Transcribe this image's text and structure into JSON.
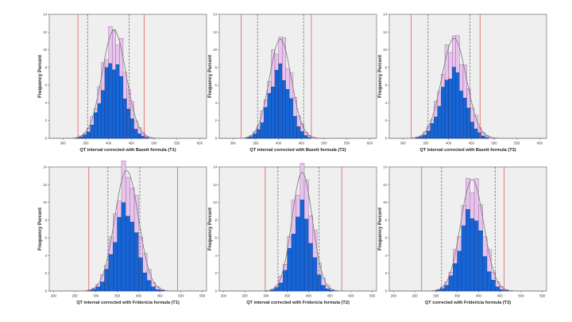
{
  "colors": {
    "plot_bg": "#efefef",
    "frame": "#555555",
    "bar_pink": "#e8c4ec",
    "bar_pink_edge": "#7b4f86",
    "bar_blue": "#1565d6",
    "bar_blue_edge": "#0a2f75",
    "curve": "#777777",
    "red_line": "#e06060",
    "dash_line": "#555555"
  },
  "chart_data": [
    {
      "type": "bar",
      "title": "",
      "xlabel": "QT interval corrected with Bazett formula (T1)",
      "ylabel": "Frequency Percent",
      "xlim": [
        270,
        615
      ],
      "ylim": [
        0,
        14
      ],
      "xticks": [
        300,
        350,
        400,
        450,
        500,
        550,
        600
      ],
      "yticks": [
        0,
        2,
        4,
        6,
        8,
        10,
        12,
        14
      ],
      "bin_width": 8,
      "mean": 412,
      "sd": 26,
      "pink_peak": 12.2,
      "blue_peak": 8.6,
      "red_lines": [
        333,
        478
      ],
      "dashed_lines": [
        354,
        445
      ],
      "legend": "none",
      "grid": false
    },
    {
      "type": "bar",
      "title": "",
      "xlabel": "QT interval corrected with Bazett formula (T2)",
      "ylabel": "Frequency Percent",
      "xlim": [
        270,
        615
      ],
      "ylim": [
        0,
        14
      ],
      "xticks": [
        300,
        350,
        400,
        450,
        500,
        550,
        600
      ],
      "yticks": [
        0,
        2,
        4,
        6,
        8,
        10,
        12,
        14
      ],
      "bin_width": 8,
      "mean": 404,
      "sd": 24,
      "pink_peak": 11.2,
      "blue_peak": 7.8,
      "red_lines": [
        318,
        472
      ],
      "dashed_lines": [
        354,
        455
      ],
      "legend": "none",
      "grid": false
    },
    {
      "type": "bar",
      "title": "",
      "xlabel": "QT interval corrected with Bazett formula (T3)",
      "ylabel": "Frequency Percent",
      "xlim": [
        270,
        615
      ],
      "ylim": [
        0,
        14
      ],
      "xticks": [
        300,
        350,
        400,
        450,
        500,
        550,
        600
      ],
      "yticks": [
        0,
        2,
        4,
        6,
        8,
        10,
        12,
        14
      ],
      "bin_width": 8,
      "mean": 412,
      "sd": 27,
      "pink_peak": 11.3,
      "blue_peak": 7.6,
      "red_lines": [
        318,
        469
      ],
      "dashed_lines": [
        355,
        447
      ],
      "legend": "none",
      "grid": false
    },
    {
      "type": "bar",
      "title": "",
      "xlabel": "QT interval corrected with Fridericia formula (T1)",
      "ylabel": "Frequency Percent",
      "xlim": [
        190,
        560
      ],
      "ylim": [
        0,
        14
      ],
      "xticks": [
        200,
        250,
        300,
        350,
        400,
        450,
        500,
        550
      ],
      "yticks": [
        0,
        2,
        4,
        6,
        8,
        10,
        12,
        14
      ],
      "bin_width": 10,
      "mean": 372,
      "sd": 28,
      "pink_peak": 13.6,
      "blue_peak": 9.4,
      "red_lines": [
        283,
        492
      ],
      "dashed_lines": [
        328,
        403
      ],
      "legend": "none",
      "grid": false
    },
    {
      "type": "bar",
      "title": "",
      "xlabel": "QT interval corrected with Fridericia formula (T2)",
      "ylabel": "Frequency Percent",
      "xlim": [
        190,
        560
      ],
      "ylim": [
        0,
        14
      ],
      "xticks": [
        200,
        250,
        300,
        350,
        400,
        450,
        500,
        550
      ],
      "yticks": [
        0,
        2,
        4,
        6,
        8,
        10,
        12,
        14
      ],
      "bin_width": 10,
      "mean": 385,
      "sd": 24,
      "pink_peak": 13.4,
      "blue_peak": 9.4,
      "red_lines": [
        298,
        478
      ],
      "dashed_lines": [
        328,
        425
      ],
      "legend": "none",
      "grid": false
    },
    {
      "type": "bar",
      "title": "",
      "xlabel": "QT corrected with Fridericia formula (T3)",
      "ylabel": "Frequency Percent",
      "xlim": [
        190,
        560
      ],
      "ylim": [
        0,
        14
      ],
      "xticks": [
        200,
        250,
        300,
        350,
        400,
        450,
        500,
        550
      ],
      "yticks": [
        0,
        2,
        4,
        6,
        8,
        10,
        12,
        14
      ],
      "bin_width": 10,
      "mean": 385,
      "sd": 27,
      "pink_peak": 12.6,
      "blue_peak": 9.0,
      "red_lines": [
        266,
        460
      ],
      "dashed_lines": [
        313,
        439
      ],
      "legend": "none",
      "grid": false
    }
  ]
}
